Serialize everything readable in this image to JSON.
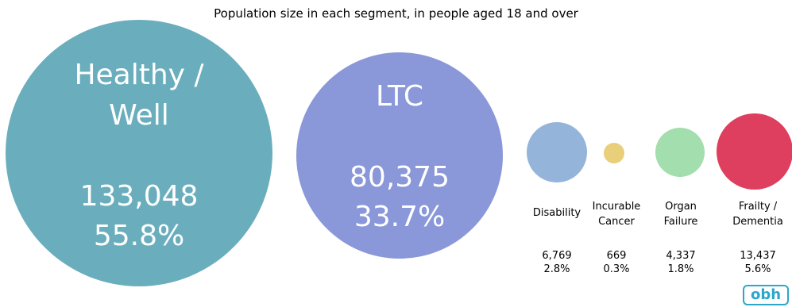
{
  "chart_data": {
    "type": "bubble",
    "title": "Population size in each segment, in people aged 18 and over",
    "segments": [
      {
        "name_lines": [
          "Healthy /",
          "Well"
        ],
        "value_label": "133,048",
        "percent_label": "55.8%",
        "value": 133048,
        "percent": 55.8,
        "color": "#6aaebd",
        "label_position": "inside"
      },
      {
        "name_lines": [
          "LTC"
        ],
        "value_label": "80,375",
        "percent_label": "33.7%",
        "value": 80375,
        "percent": 33.7,
        "color": "#8a97d8",
        "label_position": "inside"
      },
      {
        "name_lines": [
          "Disability"
        ],
        "value_label": "6,769",
        "percent_label": "2.8%",
        "value": 6769,
        "percent": 2.8,
        "color": "#95b4da",
        "label_position": "below"
      },
      {
        "name_lines": [
          "Incurable",
          "Cancer"
        ],
        "value_label": "669",
        "percent_label": "0.3%",
        "value": 669,
        "percent": 0.3,
        "color": "#e9cf79",
        "label_position": "below"
      },
      {
        "name_lines": [
          "Organ",
          "Failure"
        ],
        "value_label": "4,337",
        "percent_label": "1.8%",
        "value": 4337,
        "percent": 1.8,
        "color": "#a3deae",
        "label_position": "below"
      },
      {
        "name_lines": [
          "Frailty /",
          "Dementia"
        ],
        "value_label": "13,437",
        "percent_label": "5.6%",
        "value": 13437,
        "percent": 5.6,
        "color": "#de3f5e",
        "label_position": "below"
      }
    ]
  },
  "logo": {
    "text": "obh",
    "color": "#2aa7c9"
  }
}
